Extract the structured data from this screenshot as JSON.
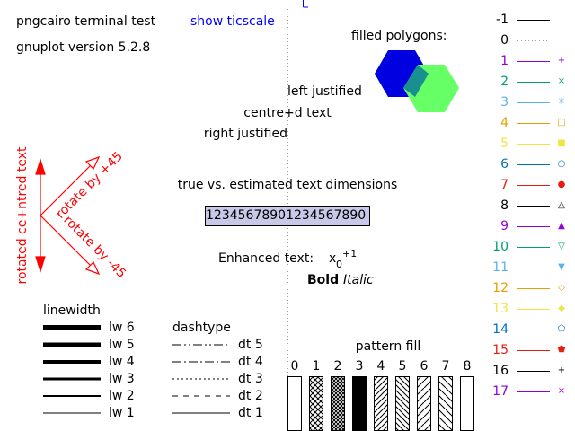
{
  "header": {
    "title": "pngcairo  terminal test",
    "version": "gnuplot version 5.2.8",
    "ticscale_link": "show ticscale"
  },
  "polygons_label": "filled polygons:",
  "justification": {
    "left": "left justified",
    "centre": "centre+d text",
    "right": "right justified"
  },
  "rotated": {
    "centred": "rotated ce+ntred text",
    "plus45": "rotate by +45",
    "minus45": "rotate by -45"
  },
  "text_dims": {
    "label": "true vs. estimated text dimensions",
    "sample": "12345678901234567890"
  },
  "enhanced": {
    "label": "Enhanced text:",
    "base": "x",
    "sub": "0",
    "sup": "+1",
    "bold": "Bold",
    "italic": "Italic"
  },
  "linewidth": {
    "title": "linewidth",
    "items": [
      "lw 6",
      "lw 5",
      "lw 4",
      "lw 3",
      "lw 2",
      "lw 1"
    ]
  },
  "dashtype": {
    "title": "dashtype",
    "items": [
      "dt 5",
      "dt 4",
      "dt 3",
      "dt 2",
      "dt 1"
    ]
  },
  "pattern": {
    "title": "pattern fill",
    "labels": [
      "0",
      "1",
      "2",
      "3",
      "4",
      "5",
      "6",
      "7",
      "8"
    ]
  },
  "linetypes": [
    {
      "label": "-1",
      "color": "#000000",
      "symbol": "none"
    },
    {
      "label": "0",
      "color": "#a0a0a0",
      "symbol": "none"
    },
    {
      "label": "1",
      "color": "#9400d3",
      "symbol": "+"
    },
    {
      "label": "2",
      "color": "#009e73",
      "symbol": "×"
    },
    {
      "label": "3",
      "color": "#56b4e9",
      "symbol": "✳"
    },
    {
      "label": "4",
      "color": "#e69f00",
      "symbol": "□"
    },
    {
      "label": "5",
      "color": "#f0e442",
      "symbol": "■"
    },
    {
      "label": "6",
      "color": "#0072b2",
      "symbol": "○"
    },
    {
      "label": "7",
      "color": "#e51e10",
      "symbol": "●"
    },
    {
      "label": "8",
      "color": "#000000",
      "symbol": "△"
    },
    {
      "label": "9",
      "color": "#9400d3",
      "symbol": "▲"
    },
    {
      "label": "10",
      "color": "#009e73",
      "symbol": "▽"
    },
    {
      "label": "11",
      "color": "#56b4e9",
      "symbol": "▼"
    },
    {
      "label": "12",
      "color": "#e69f00",
      "symbol": "◇"
    },
    {
      "label": "13",
      "color": "#f0e442",
      "symbol": "◆"
    },
    {
      "label": "14",
      "color": "#0072b2",
      "symbol": "⬠"
    },
    {
      "label": "15",
      "color": "#e51e10",
      "symbol": "⬟"
    },
    {
      "label": "16",
      "color": "#000000",
      "symbol": "+"
    },
    {
      "label": "17",
      "color": "#9400d3",
      "symbol": "×"
    }
  ],
  "colors": {
    "link": "#0000ff",
    "rotated": "#ff0000",
    "hex_blue": "#0000e0",
    "hex_green": "#66ff66",
    "hex_overlap": "#1a8f8f",
    "text_box": "#c8c8e8"
  }
}
